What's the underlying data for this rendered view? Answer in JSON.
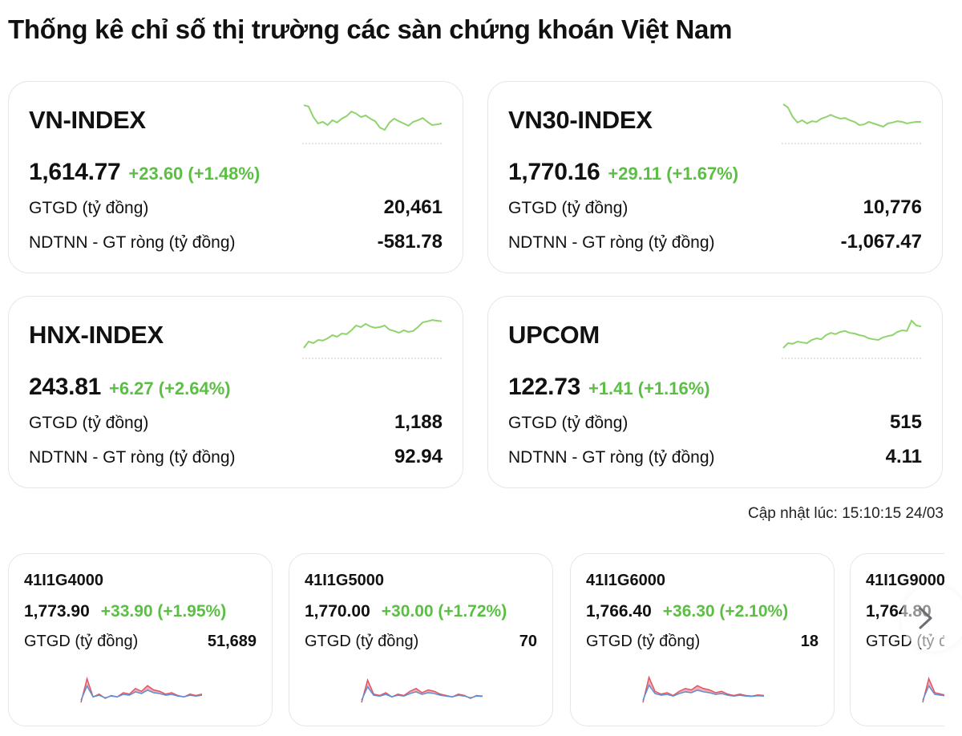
{
  "title": "Thống kê chỉ số thị trường các sàn chứng khoán Việt Nam",
  "colors": {
    "up": "#5bbf44",
    "spark_line": "#8fd46c",
    "baseline": "#c4c7cc",
    "red_fill": "#f2a0a8",
    "red_line": "#e2545f",
    "blue_line": "#5b8fd6"
  },
  "indices": [
    {
      "name": "VN-INDEX",
      "price": "1,614.77",
      "change": "+23.60 (+1.48%)",
      "gtgd_label": "GTGD (tỷ đồng)",
      "gtgd": "20,461",
      "ndtnn_label": "NDTNN - GT ròng (tỷ đồng)",
      "ndtnn": "-581.78",
      "sparkline": [
        0.92,
        0.88,
        0.55,
        0.35,
        0.4,
        0.3,
        0.45,
        0.38,
        0.5,
        0.58,
        0.72,
        0.66,
        0.55,
        0.6,
        0.5,
        0.42,
        0.22,
        0.15,
        0.38,
        0.5,
        0.42,
        0.35,
        0.28,
        0.4,
        0.45,
        0.52,
        0.4,
        0.3,
        0.32,
        0.35
      ]
    },
    {
      "name": "VN30-INDEX",
      "price": "1,770.16",
      "change": "+29.11 (+1.67%)",
      "gtgd_label": "GTGD (tỷ đồng)",
      "gtgd": "10,776",
      "ndtnn_label": "NDTNN - GT ròng (tỷ đồng)",
      "ndtnn": "-1,067.47",
      "sparkline": [
        0.95,
        0.85,
        0.55,
        0.38,
        0.45,
        0.35,
        0.42,
        0.4,
        0.5,
        0.55,
        0.62,
        0.55,
        0.5,
        0.52,
        0.45,
        0.4,
        0.3,
        0.32,
        0.4,
        0.35,
        0.3,
        0.25,
        0.35,
        0.38,
        0.42,
        0.4,
        0.35,
        0.38,
        0.4,
        0.4
      ]
    },
    {
      "name": "HNX-INDEX",
      "price": "243.81",
      "change": "+6.27 (+2.64%)",
      "gtgd_label": "GTGD (tỷ đồng)",
      "gtgd": "1,188",
      "ndtnn_label": "NDTNN - GT ròng (tỷ đồng)",
      "ndtnn": "92.94",
      "sparkline": [
        0.05,
        0.25,
        0.2,
        0.3,
        0.28,
        0.35,
        0.45,
        0.4,
        0.5,
        0.48,
        0.6,
        0.75,
        0.7,
        0.8,
        0.72,
        0.68,
        0.7,
        0.75,
        0.62,
        0.58,
        0.52,
        0.6,
        0.55,
        0.58,
        0.7,
        0.85,
        0.88,
        0.92,
        0.9,
        0.88
      ]
    },
    {
      "name": "UPCOM",
      "price": "122.73",
      "change": "+1.41 (+1.16%)",
      "gtgd_label": "GTGD (tỷ đồng)",
      "gtgd": "515",
      "ndtnn_label": "NDTNN - GT ròng (tỷ đồng)",
      "ndtnn": "4.11",
      "sparkline": [
        0.05,
        0.2,
        0.18,
        0.25,
        0.22,
        0.2,
        0.3,
        0.35,
        0.32,
        0.45,
        0.52,
        0.48,
        0.55,
        0.58,
        0.52,
        0.5,
        0.45,
        0.42,
        0.35,
        0.32,
        0.3,
        0.38,
        0.42,
        0.45,
        0.55,
        0.6,
        0.58,
        0.9,
        0.75,
        0.72
      ]
    }
  ],
  "updated": "Cập nhật lúc: 15:10:15 24/03",
  "futures": [
    {
      "code": "41I1G4000",
      "price": "1,773.90",
      "change": "+33.90 (+1.95%)",
      "gtgd_label": "GTGD (tỷ đồng)",
      "gtgd": "51,689",
      "mini": [
        0.05,
        0.9,
        0.25,
        0.35,
        0.2,
        0.3,
        0.25,
        0.4,
        0.35,
        0.55,
        0.45,
        0.65,
        0.5,
        0.45,
        0.35,
        0.4,
        0.3,
        0.25,
        0.35,
        0.3,
        0.35
      ]
    },
    {
      "code": "41I1G5000",
      "price": "1,770.00",
      "change": "+30.00 (+1.72%)",
      "gtgd_label": "GTGD (tỷ đồng)",
      "gtgd": "70",
      "mini": [
        0.05,
        0.85,
        0.35,
        0.3,
        0.4,
        0.25,
        0.35,
        0.3,
        0.45,
        0.55,
        0.4,
        0.5,
        0.45,
        0.35,
        0.3,
        0.25,
        0.35,
        0.3,
        0.2,
        0.3,
        0.28
      ]
    },
    {
      "code": "41I1G6000",
      "price": "1,766.40",
      "change": "+36.30 (+2.10%)",
      "gtgd_label": "GTGD (tỷ đồng)",
      "gtgd": "18",
      "mini": [
        0.05,
        0.95,
        0.45,
        0.35,
        0.4,
        0.3,
        0.45,
        0.55,
        0.5,
        0.65,
        0.55,
        0.5,
        0.4,
        0.45,
        0.35,
        0.3,
        0.35,
        0.3,
        0.28,
        0.32,
        0.3
      ]
    },
    {
      "code": "41I1G9000",
      "price": "1,764.80",
      "change": "",
      "gtgd_label": "GTGD (tỷ đồng)",
      "gtgd": "",
      "mini": [
        0.05,
        0.9,
        0.4,
        0.35,
        0.3,
        0.35,
        0.3
      ]
    }
  ],
  "icons": {
    "next": "chevron-right-icon"
  }
}
